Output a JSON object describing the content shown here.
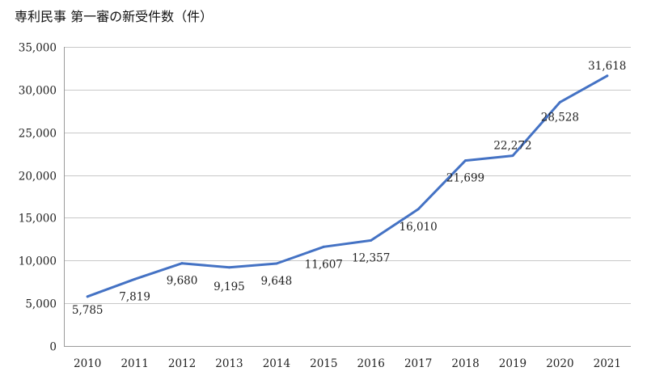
{
  "chart_data": {
    "type": "line",
    "title": "専利民事 第一審の新受件数（件）",
    "xlabel": "",
    "ylabel": "",
    "categories": [
      "2010",
      "2011",
      "2012",
      "2013",
      "2014",
      "2015",
      "2016",
      "2017",
      "2018",
      "2019",
      "2020",
      "2021"
    ],
    "series": [
      {
        "values": [
          5785,
          7819,
          9680,
          9195,
          9648,
          11607,
          12357,
          16010,
          21699,
          22272,
          28528,
          31618
        ],
        "color": "#4472c4"
      }
    ],
    "data_labels": [
      "5,785",
      "7,819",
      "9,680",
      "9,195",
      "9,648",
      "11,607",
      "12,357",
      "16,010",
      "21,699",
      "22,272",
      "28,528",
      "31,618"
    ],
    "ylim": [
      0,
      35000
    ],
    "yticks": [
      0,
      5000,
      10000,
      15000,
      20000,
      25000,
      30000,
      35000
    ],
    "ytick_labels": [
      "0",
      "5,000",
      "10,000",
      "15,000",
      "20,000",
      "25,000",
      "30,000",
      "35,000"
    ],
    "grid": true,
    "legend": "none"
  }
}
